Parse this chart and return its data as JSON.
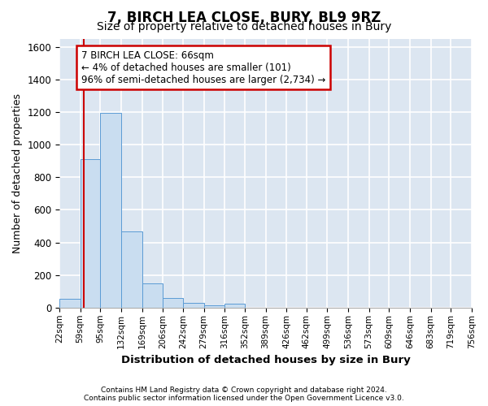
{
  "title": "7, BIRCH LEA CLOSE, BURY, BL9 9RZ",
  "subtitle": "Size of property relative to detached houses in Bury",
  "xlabel": "Distribution of detached houses by size in Bury",
  "ylabel": "Number of detached properties",
  "footnote1": "Contains HM Land Registry data © Crown copyright and database right 2024.",
  "footnote2": "Contains public sector information licensed under the Open Government Licence v3.0.",
  "bar_edges": [
    22,
    59,
    95,
    132,
    169,
    206,
    242,
    279,
    316,
    352,
    389,
    426,
    462,
    499,
    536,
    573,
    609,
    646,
    683,
    719,
    756
  ],
  "bar_values": [
    55,
    910,
    1195,
    470,
    150,
    60,
    28,
    15,
    25,
    0,
    0,
    0,
    0,
    0,
    0,
    0,
    0,
    0,
    0,
    0
  ],
  "bar_color": "#c9ddf0",
  "bar_edge_color": "#5b9bd5",
  "property_size": 66,
  "property_line_color": "#cc0000",
  "annotation_text": "7 BIRCH LEA CLOSE: 66sqm\n← 4% of detached houses are smaller (101)\n96% of semi-detached houses are larger (2,734) →",
  "annotation_box_color": "#cc0000",
  "ylim": [
    0,
    1650
  ],
  "yticks": [
    0,
    200,
    400,
    600,
    800,
    1000,
    1200,
    1400,
    1600
  ],
  "background_color": "#dce6f1",
  "grid_color": "#ffffff",
  "title_fontsize": 12,
  "subtitle_fontsize": 10
}
